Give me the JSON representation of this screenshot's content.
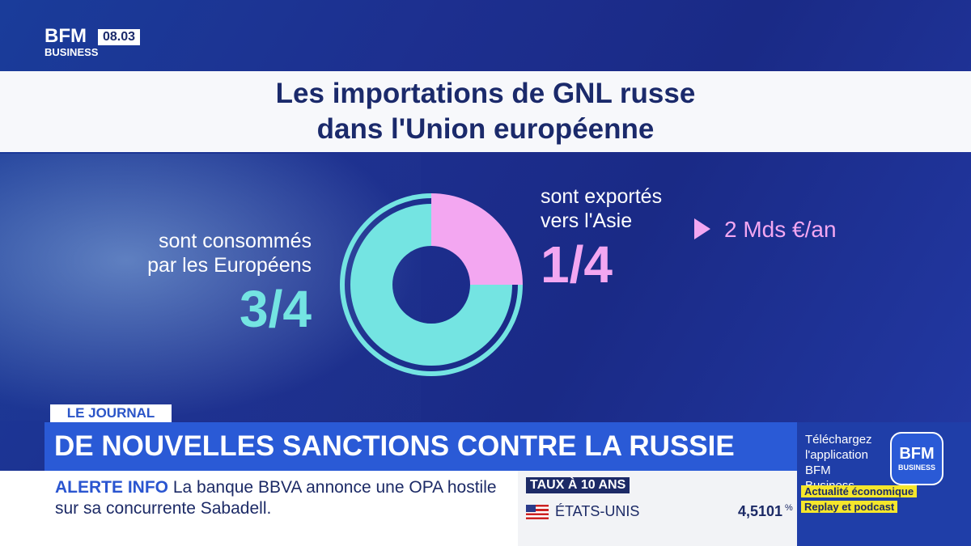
{
  "channel": {
    "logo_top": "BFM",
    "logo_bottom": "BUSINESS",
    "time": "08.03"
  },
  "chart_data": {
    "type": "donut",
    "title": "Les importations de GNL russe dans l'Union européenne",
    "categories": [
      "sont consommés par les Européens",
      "sont exportés vers l'Asie"
    ],
    "values": [
      0.75,
      0.25
    ],
    "value_labels": [
      "3/4",
      "1/4"
    ],
    "colors": [
      "#74e4e2",
      "#f3a7f1"
    ],
    "annotation": "2 Mds €/an"
  },
  "headline": {
    "tag": "LE JOURNAL",
    "title": "DE NOUVELLES SANCTIONS CONTRE LA RUSSIE"
  },
  "ticker": {
    "tag": "ALERTE INFO",
    "text": "La banque BBVA annonce une OPA hostile sur sa concurrente Sabadell."
  },
  "rates": {
    "title": "TAUX À 10 ANS",
    "country": "ÉTATS-UNIS",
    "value": "4,5101",
    "unit": "%"
  },
  "promo": {
    "text": "Téléchargez l'application BFM Business",
    "logo_top": "BFM",
    "logo_bottom": "BUSINESS",
    "tags": [
      "Actualité économique",
      "Replay et podcast"
    ]
  }
}
